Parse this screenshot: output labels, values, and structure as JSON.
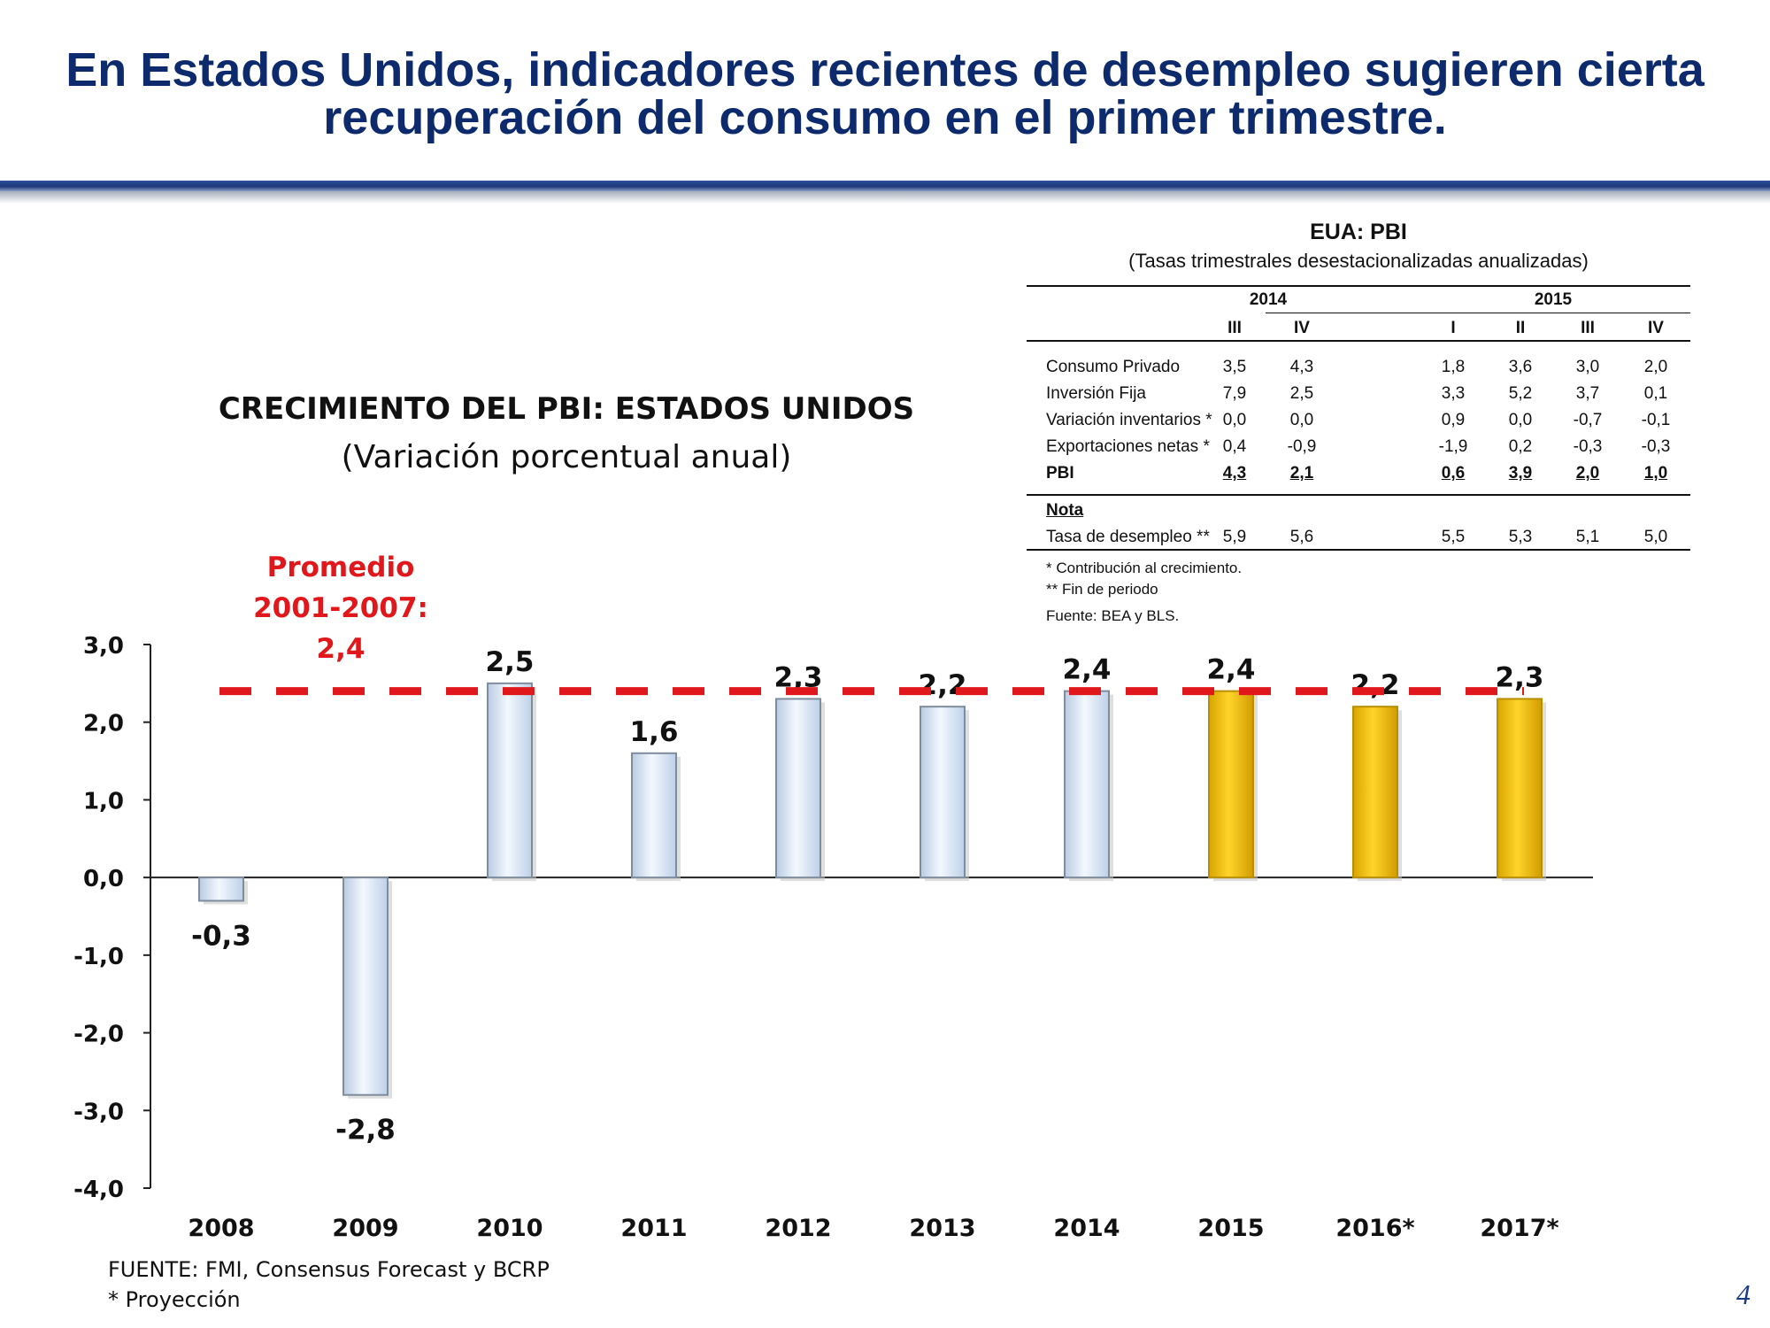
{
  "slide": {
    "title_line1": "En Estados Unidos, indicadores recientes de desempleo sugieren cierta",
    "title_line2": "recuperación del consumo en el primer trimestre.",
    "page_number": "4"
  },
  "chart_data": {
    "type": "bar",
    "title": "CRECIMIENTO DEL PBI: ESTADOS UNIDOS",
    "subtitle": "(Variación porcentual anual)",
    "categories": [
      "2008",
      "2009",
      "2010",
      "2011",
      "2012",
      "2013",
      "2014",
      "2015",
      "2016*",
      "2017*"
    ],
    "values": [
      -0.3,
      -2.8,
      2.5,
      1.6,
      2.3,
      2.2,
      2.4,
      2.4,
      2.2,
      2.3
    ],
    "value_labels": [
      "-0,3",
      "-2,8",
      "2,5",
      "1,6",
      "2,3",
      "2,2",
      "2,4",
      "2,4",
      "2,2",
      "2,3"
    ],
    "bar_types": [
      "actual",
      "actual",
      "actual",
      "actual",
      "actual",
      "actual",
      "actual",
      "projection",
      "projection",
      "projection"
    ],
    "ylim": [
      -4.0,
      3.0
    ],
    "yticks": [
      3.0,
      2.0,
      1.0,
      0.0,
      -1.0,
      -2.0,
      -3.0,
      -4.0
    ],
    "ytick_labels": [
      "3,0",
      "2,0",
      "1,0",
      "0,0",
      "-1,0",
      "-2,0",
      "-3,0",
      "-4,0"
    ],
    "average_line": {
      "value": 2.4,
      "label_lines": [
        "Promedio",
        "2001-2007:",
        "2,4"
      ],
      "color": "#e0181c"
    },
    "colors": {
      "actual_fill": "#dde9f8",
      "actual_edge": "#7f8c9c",
      "projection_fill": "#f3c005",
      "projection_edge": "#b88f00"
    },
    "grid": false,
    "xlabel": "",
    "ylabel": ""
  },
  "table": {
    "title": "EUA: PBI",
    "subtitle": "(Tasas trimestrales desestacionalizadas anualizadas)",
    "years": [
      "2014",
      "2015"
    ],
    "quarters": [
      "III",
      "IV",
      "I",
      "II",
      "III",
      "IV"
    ],
    "rows": [
      {
        "label": "Consumo Privado",
        "values": [
          "3,5",
          "4,3",
          "1,8",
          "3,6",
          "3,0",
          "2,0"
        ]
      },
      {
        "label": "Inversión Fija",
        "values": [
          "7,9",
          "2,5",
          "3,3",
          "5,2",
          "3,7",
          "0,1"
        ]
      },
      {
        "label": "Variación inventarios *",
        "values": [
          "0,0",
          "0,0",
          "0,9",
          "0,0",
          "-0,7",
          "-0,1"
        ]
      },
      {
        "label": "Exportaciones netas *",
        "values": [
          "0,4",
          "-0,9",
          "-1,9",
          "0,2",
          "-0,3",
          "-0,3"
        ]
      },
      {
        "label": "PBI",
        "values": [
          "4,3",
          "2,1",
          "0,6",
          "3,9",
          "2,0",
          "1,0"
        ]
      }
    ],
    "note_header": "Nota",
    "note_row": {
      "label": "Tasa de desempleo **",
      "values": [
        "5,9",
        "5,6",
        "5,5",
        "5,3",
        "5,1",
        "5,0"
      ]
    },
    "footnotes": [
      "* Contribución al crecimiento.",
      "** Fin de periodo",
      "Fuente: BEA y BLS."
    ]
  },
  "source": {
    "line1": "FUENTE: FMI, Consensus Forecast y BCRP",
    "line2": "* Proyección"
  }
}
